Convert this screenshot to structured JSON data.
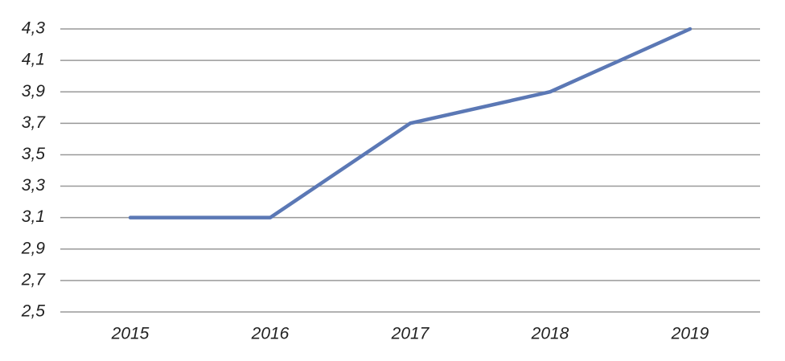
{
  "chart_data": {
    "type": "line",
    "categories": [
      "2015",
      "2016",
      "2017",
      "2018",
      "2019"
    ],
    "values": [
      3.1,
      3.1,
      3.7,
      3.9,
      4.3
    ],
    "color": "#5b78b5",
    "ylim": [
      2.5,
      4.3
    ],
    "yticks": [
      {
        "value": 2.5,
        "label": "2,5"
      },
      {
        "value": 2.7,
        "label": "2,7"
      },
      {
        "value": 2.9,
        "label": "2,9"
      },
      {
        "value": 3.1,
        "label": "3,1"
      },
      {
        "value": 3.3,
        "label": "3,3"
      },
      {
        "value": 3.5,
        "label": "3,5"
      },
      {
        "value": 3.7,
        "label": "3,7"
      },
      {
        "value": 3.9,
        "label": "3,9"
      },
      {
        "value": 4.1,
        "label": "4,1"
      },
      {
        "value": 4.3,
        "label": "4,3"
      }
    ],
    "grid": true
  }
}
